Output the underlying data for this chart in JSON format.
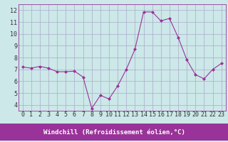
{
  "x": [
    0,
    1,
    2,
    3,
    4,
    5,
    6,
    7,
    8,
    9,
    10,
    11,
    12,
    13,
    14,
    15,
    16,
    17,
    18,
    19,
    20,
    21,
    22,
    23
  ],
  "y": [
    7.2,
    7.1,
    7.25,
    7.1,
    6.8,
    6.8,
    6.85,
    6.35,
    3.7,
    4.8,
    4.5,
    5.6,
    7.0,
    8.7,
    11.85,
    11.85,
    11.1,
    11.3,
    9.7,
    7.8,
    6.55,
    6.2,
    7.0,
    7.5
  ],
  "line_color": "#993399",
  "marker": "D",
  "marker_size": 2.0,
  "xlabel": "Windchill (Refroidissement éolien,°C)",
  "xlabel_fontsize": 6.5,
  "tick_fontsize": 6.0,
  "xlim": [
    -0.5,
    23.5
  ],
  "ylim": [
    3.5,
    12.5
  ],
  "yticks": [
    4,
    5,
    6,
    7,
    8,
    9,
    10,
    11,
    12
  ],
  "xticks": [
    0,
    1,
    2,
    3,
    4,
    5,
    6,
    7,
    8,
    9,
    10,
    11,
    12,
    13,
    14,
    15,
    16,
    17,
    18,
    19,
    20,
    21,
    22,
    23
  ],
  "bg_color": "#cce8e8",
  "grid_color": "#aaaacc",
  "spine_color": "#993399",
  "xlabel_color": "#ffffff",
  "xlabel_bg": "#993399",
  "line_width": 0.8
}
